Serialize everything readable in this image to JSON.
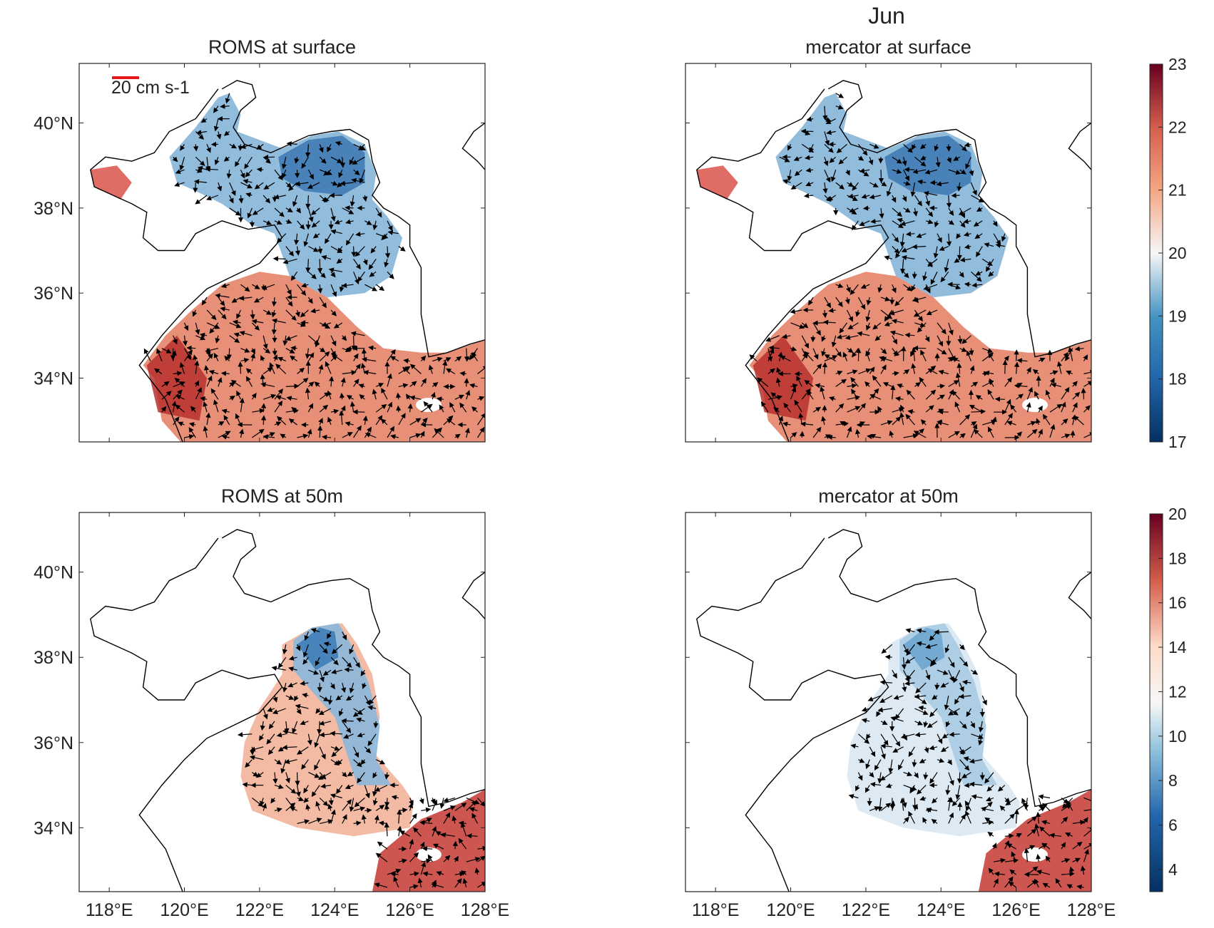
{
  "figure": {
    "suptitle": "Jun",
    "colors": {
      "warm": "#b2182b",
      "cool": "#2166ac",
      "neutral": "#f7f7f7",
      "coast": "#000000",
      "arrow": "#000000",
      "scale_arrow": "#e8161b"
    }
  },
  "panels": [
    {
      "id": "roms-surface",
      "title": "ROMS at surface",
      "show_ylabels": true,
      "show_xlabels": false,
      "layer": "surface",
      "model": "roms",
      "scale_label": "20 cm s-1"
    },
    {
      "id": "mercator-surface",
      "title": "mercator at surface",
      "show_ylabels": false,
      "show_xlabels": false,
      "layer": "surface",
      "model": "mercator"
    },
    {
      "id": "roms-50m",
      "title": "ROMS at 50m",
      "show_ylabels": true,
      "show_xlabels": true,
      "layer": "50m",
      "model": "roms"
    },
    {
      "id": "mercator-50m",
      "title": "mercator at 50m",
      "show_ylabels": false,
      "show_xlabels": true,
      "layer": "50m",
      "model": "mercator"
    }
  ],
  "axes": {
    "lon_range": [
      117.2,
      128
    ],
    "lat_range": [
      32.5,
      41.4
    ],
    "lon_ticks": [
      118,
      120,
      122,
      124,
      126,
      128
    ],
    "lon_tick_labels": [
      "118°E",
      "120°E",
      "122°E",
      "124°E",
      "126°E",
      "128°E"
    ],
    "lat_ticks": [
      34,
      36,
      38,
      40
    ],
    "lat_tick_labels": [
      "34°N",
      "36°N",
      "38°N",
      "40°N"
    ]
  },
  "colorbars": [
    {
      "id": "surface-colorbar",
      "min": 17,
      "max": 23,
      "ticks": [
        "17",
        "18",
        "19",
        "20",
        "21",
        "22",
        "23"
      ],
      "tick_values": [
        17,
        18,
        19,
        20,
        21,
        22,
        23
      ]
    },
    {
      "id": "50m-colorbar",
      "min": 3,
      "max": 20,
      "ticks": [
        "4",
        "6",
        "8",
        "10",
        "12",
        "14",
        "16",
        "18",
        "20"
      ],
      "tick_values": [
        4,
        6,
        8,
        10,
        12,
        14,
        16,
        18,
        20
      ]
    }
  ]
}
